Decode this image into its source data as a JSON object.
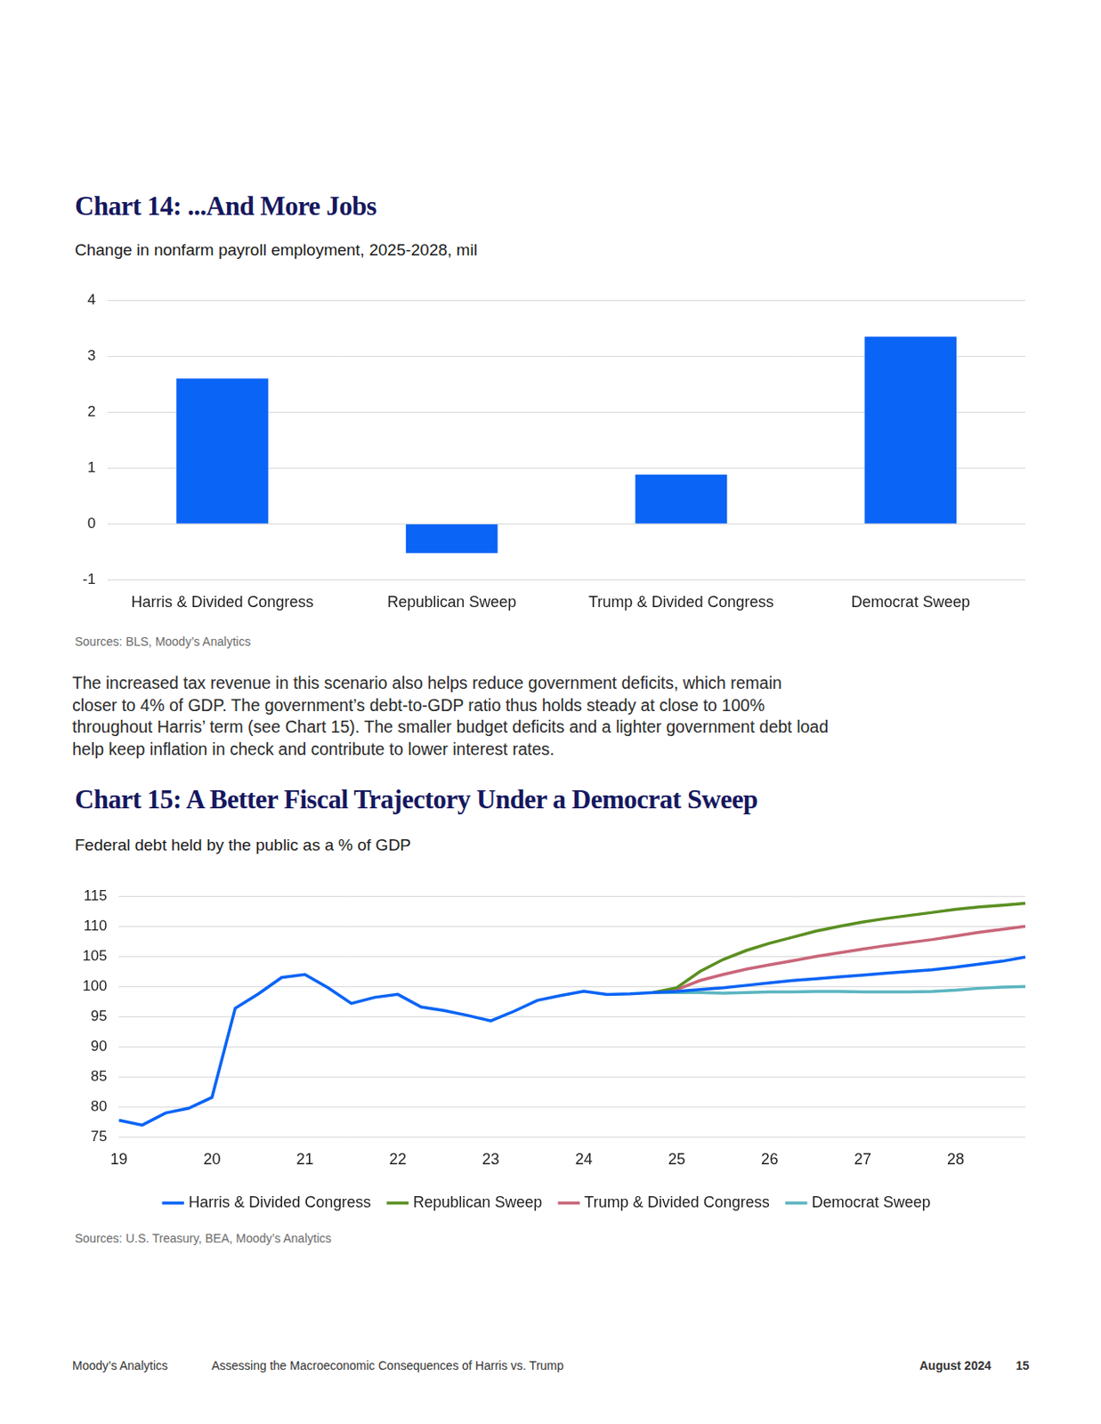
{
  "chart_data": [
    {
      "type": "bar",
      "title": "Chart 14: ...And More Jobs",
      "subtitle": "Change in nonfarm payroll employment, 2025-2028, mil",
      "source": "Sources: BLS, Moody’s Analytics",
      "categories": [
        "Harris & Divided Congress",
        "Republican Sweep",
        "Trump & Divided Congress",
        "Democrat Sweep"
      ],
      "values": [
        2.6,
        -0.52,
        0.88,
        3.35
      ],
      "color": "#0a64f5",
      "ylim": [
        -1,
        4
      ],
      "yticks": [
        -1,
        0,
        1,
        2,
        3,
        4
      ],
      "grid": true
    },
    {
      "type": "line",
      "title": "Chart 15: A Better Fiscal Trajectory Under a Democrat Sweep",
      "subtitle": "Federal debt held by the public as a % of GDP",
      "source": "Sources: U.S. Treasury, BEA, Moody’s Analytics",
      "categories": [
        "19",
        null,
        null,
        null,
        "20",
        null,
        null,
        null,
        "21",
        null,
        null,
        null,
        "22",
        null,
        null,
        null,
        "23",
        null,
        null,
        null,
        "24",
        null,
        null,
        null,
        "25",
        null,
        null,
        null,
        "26",
        null,
        null,
        null,
        "27",
        null,
        null,
        null,
        "28",
        null,
        null,
        null
      ],
      "series": [
        {
          "name": "Harris & Divided Congress",
          "color": "#0a64f5",
          "values": [
            77.8,
            77.0,
            79.0,
            79.8,
            81.6,
            96.4,
            98.8,
            101.5,
            102.0,
            99.8,
            97.2,
            98.2,
            98.7,
            96.6,
            96.0,
            95.2,
            94.3,
            95.9,
            97.7,
            98.5,
            99.2,
            98.7,
            98.8,
            99.0,
            99.2,
            99.5,
            99.8,
            100.2,
            100.6,
            101.0,
            101.3,
            101.6,
            101.9,
            102.2,
            102.5,
            102.8,
            103.2,
            103.7,
            104.2,
            104.9
          ]
        },
        {
          "name": "Republican Sweep",
          "color": "#5b8f22",
          "values": [
            null,
            null,
            null,
            null,
            null,
            null,
            null,
            null,
            null,
            null,
            null,
            null,
            null,
            null,
            null,
            null,
            null,
            null,
            null,
            null,
            null,
            null,
            null,
            99.0,
            99.8,
            102.5,
            104.5,
            106.0,
            107.2,
            108.2,
            109.2,
            110.0,
            110.7,
            111.3,
            111.8,
            112.3,
            112.8,
            113.2,
            113.5,
            113.8
          ]
        },
        {
          "name": "Trump & Divided Congress",
          "color": "#c9667a",
          "values": [
            null,
            null,
            null,
            null,
            null,
            null,
            null,
            null,
            null,
            null,
            null,
            null,
            null,
            null,
            null,
            null,
            null,
            null,
            null,
            null,
            null,
            null,
            null,
            99.0,
            99.5,
            101.0,
            102.0,
            102.9,
            103.6,
            104.3,
            105.0,
            105.6,
            106.2,
            106.8,
            107.3,
            107.8,
            108.4,
            109.0,
            109.5,
            110.0
          ]
        },
        {
          "name": "Democrat Sweep",
          "color": "#5bb5c0",
          "values": [
            null,
            null,
            null,
            null,
            null,
            null,
            null,
            null,
            null,
            null,
            null,
            null,
            null,
            null,
            null,
            null,
            null,
            null,
            null,
            null,
            null,
            null,
            null,
            99.0,
            99.0,
            99.0,
            98.9,
            99.0,
            99.1,
            99.1,
            99.2,
            99.2,
            99.1,
            99.1,
            99.1,
            99.2,
            99.4,
            99.7,
            99.9,
            100.0
          ]
        }
      ],
      "ylim": [
        75,
        115
      ],
      "yticks": [
        75,
        80,
        85,
        90,
        95,
        100,
        105,
        110,
        115
      ],
      "grid": true,
      "legend": "bottom"
    }
  ],
  "body_text": "The increased tax revenue in this scenario also helps reduce government deficits, which remain closer to 4% of GDP. The government’s debt-to-GDP ratio thus holds steady at close to 100% throughout Harris’ term (see Chart 15). The smaller budget deficits and a lighter government debt load help keep inflation in check and contribute to lower interest rates.",
  "footer": {
    "publisher": "Moody’s Analytics",
    "report": "Assessing the Macroeconomic Consequences of Harris vs. Trump",
    "date": "August 2024",
    "page": 15
  }
}
